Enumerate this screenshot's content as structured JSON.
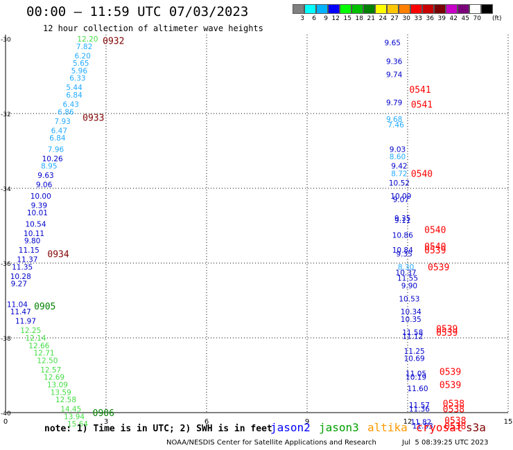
{
  "header": {
    "title": "00:00 – 11:59 UTC 07/03/2023",
    "subtitle": "12 hour collection of altimeter wave heights"
  },
  "legend": {
    "colors": [
      "#808080",
      "#00ffff",
      "#00b4ff",
      "#0000ff",
      "#00ff00",
      "#00c000",
      "#008000",
      "#ffff00",
      "#ffc800",
      "#ff8000",
      "#ff0000",
      "#c80000",
      "#780000",
      "#c800c8",
      "#780078",
      "#ffffff",
      "#000000"
    ],
    "ticks": [
      "3",
      "6",
      "9",
      "12",
      "15",
      "18",
      "21",
      "24",
      "27",
      "30",
      "33",
      "36",
      "39",
      "42",
      "45",
      "70"
    ],
    "unit": "(ft)"
  },
  "footer": {
    "note": "note: 1) Time is in UTC; 2) SWH is in feet",
    "satellites": [
      {
        "name": "jason2",
        "color": "#0000ff"
      },
      {
        "name": "jason3",
        "color": "#00a000"
      },
      {
        "name": "altika",
        "color": "#ff9900"
      },
      {
        "name": "cryosat",
        "color": "#ff0000"
      },
      {
        "name": "s3a",
        "color": "#800000"
      }
    ],
    "credit": "NOAA/NESDIS Center for Satellite Applications and Research",
    "timestamp": "Jul  5 08:39:25 UTC 2023"
  },
  "chart_data": {
    "type": "scatter",
    "title": "12 hour collection of altimeter wave heights",
    "xlim": [
      0,
      15
    ],
    "ylim": [
      -40,
      -30
    ],
    "x_ticks": [
      "0",
      "3",
      "6",
      "9",
      "12",
      "15"
    ],
    "y_ticks": [
      "-30",
      "-32",
      "-34",
      "-36",
      "-38",
      "-40"
    ],
    "grid": true,
    "wave_colors": {
      "low": "#22aaff",
      "mid": "#0000cc",
      "green": "#44dd44"
    },
    "track_colors": {
      "cryosat": "#ff0000",
      "s3a": "#800000",
      "jason3": "#008000"
    },
    "wave_heights": [
      {
        "x": 2.45,
        "y": -30.0,
        "v": "12.20",
        "c": "#44dd44"
      },
      {
        "x": 2.35,
        "y": -30.2,
        "v": "7.82",
        "c": "#22aaff"
      },
      {
        "x": 2.3,
        "y": -30.45,
        "v": "6.20",
        "c": "#22aaff"
      },
      {
        "x": 2.25,
        "y": -30.65,
        "v": "5.65",
        "c": "#22aaff"
      },
      {
        "x": 2.2,
        "y": -30.85,
        "v": "5.96",
        "c": "#22aaff"
      },
      {
        "x": 2.15,
        "y": -31.05,
        "v": "6.33",
        "c": "#22aaff"
      },
      {
        "x": 2.05,
        "y": -31.3,
        "v": "5.44",
        "c": "#22aaff"
      },
      {
        "x": 2.05,
        "y": -31.5,
        "v": "6.84",
        "c": "#22aaff"
      },
      {
        "x": 1.95,
        "y": -31.75,
        "v": "6.43",
        "c": "#22aaff"
      },
      {
        "x": 1.8,
        "y": -31.95,
        "v": "6.86",
        "c": "#22aaff"
      },
      {
        "x": 1.7,
        "y": -32.2,
        "v": "7.93",
        "c": "#22aaff"
      },
      {
        "x": 1.6,
        "y": -32.45,
        "v": "6.47",
        "c": "#22aaff"
      },
      {
        "x": 1.55,
        "y": -32.65,
        "v": "6.84",
        "c": "#22aaff"
      },
      {
        "x": 1.5,
        "y": -32.95,
        "v": "7.96",
        "c": "#22aaff"
      },
      {
        "x": 1.4,
        "y": -33.2,
        "v": "10.26",
        "c": "#0000cc"
      },
      {
        "x": 1.3,
        "y": -33.4,
        "v": "8.95",
        "c": "#22aaff"
      },
      {
        "x": 1.2,
        "y": -33.65,
        "v": "9.63",
        "c": "#0000cc"
      },
      {
        "x": 1.15,
        "y": -33.9,
        "v": "9.06",
        "c": "#0000cc"
      },
      {
        "x": 1.05,
        "y": -34.2,
        "v": "10.00",
        "c": "#0000cc"
      },
      {
        "x": 1.0,
        "y": -34.45,
        "v": "9.39",
        "c": "#0000cc"
      },
      {
        "x": 0.95,
        "y": -34.65,
        "v": "10.01",
        "c": "#0000cc"
      },
      {
        "x": 0.9,
        "y": -34.95,
        "v": "10.54",
        "c": "#0000cc"
      },
      {
        "x": 0.85,
        "y": -35.2,
        "v": "10.11",
        "c": "#0000cc"
      },
      {
        "x": 0.8,
        "y": -35.4,
        "v": "9.80",
        "c": "#0000cc"
      },
      {
        "x": 0.7,
        "y": -35.65,
        "v": "11.15",
        "c": "#0000cc"
      },
      {
        "x": 0.65,
        "y": -35.9,
        "v": "11.37",
        "c": "#0000cc"
      },
      {
        "x": 0.5,
        "y": -36.1,
        "v": "11.35",
        "c": "#0000cc"
      },
      {
        "x": 0.45,
        "y": -36.35,
        "v": "10.28",
        "c": "#0000cc"
      },
      {
        "x": 0.4,
        "y": -36.55,
        "v": "9.27",
        "c": "#0000cc"
      },
      {
        "x": 0.35,
        "y": -37.1,
        "v": "11.04",
        "c": "#0000cc"
      },
      {
        "x": 0.45,
        "y": -37.3,
        "v": "11.47",
        "c": "#0000cc"
      },
      {
        "x": 0.6,
        "y": -37.55,
        "v": "11.97",
        "c": "#0000cc"
      },
      {
        "x": 0.75,
        "y": -37.8,
        "v": "12.25",
        "c": "#44dd44"
      },
      {
        "x": 0.9,
        "y": -38.0,
        "v": "12.14",
        "c": "#44dd44"
      },
      {
        "x": 1.0,
        "y": -38.2,
        "v": "12.66",
        "c": "#44dd44"
      },
      {
        "x": 1.15,
        "y": -38.4,
        "v": "12.71",
        "c": "#44dd44"
      },
      {
        "x": 1.25,
        "y": -38.6,
        "v": "12.50",
        "c": "#44dd44"
      },
      {
        "x": 1.35,
        "y": -38.85,
        "v": "12.57",
        "c": "#44dd44"
      },
      {
        "x": 1.45,
        "y": -39.05,
        "v": "12.69",
        "c": "#44dd44"
      },
      {
        "x": 1.55,
        "y": -39.25,
        "v": "13.09",
        "c": "#44dd44"
      },
      {
        "x": 1.65,
        "y": -39.45,
        "v": "13.59",
        "c": "#44dd44"
      },
      {
        "x": 1.8,
        "y": -39.65,
        "v": "12.58",
        "c": "#44dd44"
      },
      {
        "x": 1.95,
        "y": -39.9,
        "v": "14.45",
        "c": "#44dd44"
      },
      {
        "x": 2.05,
        "y": -40.1,
        "v": "13.94",
        "c": "#44dd44"
      },
      {
        "x": 2.15,
        "y": -40.3,
        "v": "15.64",
        "c": "#44dd44"
      },
      {
        "x": 11.55,
        "y": -30.1,
        "v": "9.65",
        "c": "#0000cc"
      },
      {
        "x": 11.6,
        "y": -30.6,
        "v": "9.36",
        "c": "#0000cc"
      },
      {
        "x": 11.6,
        "y": -30.95,
        "v": "9.74",
        "c": "#0000cc"
      },
      {
        "x": 11.6,
        "y": -31.7,
        "v": "9.79",
        "c": "#0000cc"
      },
      {
        "x": 11.6,
        "y": -32.15,
        "v": "9.68",
        "c": "#22aaff"
      },
      {
        "x": 11.65,
        "y": -32.3,
        "v": "7.46",
        "c": "#22aaff"
      },
      {
        "x": 11.7,
        "y": -32.95,
        "v": "9.03",
        "c": "#0000cc"
      },
      {
        "x": 11.7,
        "y": -33.15,
        "v": "8.60",
        "c": "#22aaff"
      },
      {
        "x": 11.75,
        "y": -33.4,
        "v": "9.42",
        "c": "#0000cc"
      },
      {
        "x": 11.75,
        "y": -33.6,
        "v": "8.72",
        "c": "#22aaff"
      },
      {
        "x": 11.75,
        "y": -33.85,
        "v": "10.52",
        "c": "#0000cc"
      },
      {
        "x": 11.8,
        "y": -34.2,
        "v": "10.09",
        "c": "#0000cc"
      },
      {
        "x": 11.8,
        "y": -34.3,
        "v": "9.07",
        "c": "#0000cc"
      },
      {
        "x": 11.85,
        "y": -34.8,
        "v": "9.35",
        "c": "#0000cc"
      },
      {
        "x": 11.85,
        "y": -34.85,
        "v": "9.11",
        "c": "#0000cc"
      },
      {
        "x": 11.85,
        "y": -35.25,
        "v": "10.86",
        "c": "#0000cc"
      },
      {
        "x": 11.85,
        "y": -35.65,
        "v": "10.84",
        "c": "#0000cc"
      },
      {
        "x": 11.9,
        "y": -35.75,
        "v": "9.35",
        "c": "#0000cc"
      },
      {
        "x": 11.95,
        "y": -36.1,
        "v": "8.30",
        "c": "#22aaff"
      },
      {
        "x": 11.95,
        "y": -36.25,
        "v": "10.37",
        "c": "#0000cc"
      },
      {
        "x": 12.0,
        "y": -36.4,
        "v": "11.55",
        "c": "#0000cc"
      },
      {
        "x": 12.05,
        "y": -36.6,
        "v": "9.90",
        "c": "#0000cc"
      },
      {
        "x": 12.05,
        "y": -36.95,
        "v": "10.53",
        "c": "#0000cc"
      },
      {
        "x": 12.1,
        "y": -37.3,
        "v": "10.34",
        "c": "#0000cc"
      },
      {
        "x": 12.1,
        "y": -37.5,
        "v": "10.35",
        "c": "#0000cc"
      },
      {
        "x": 12.15,
        "y": -37.85,
        "v": "11.58",
        "c": "#0000cc"
      },
      {
        "x": 12.15,
        "y": -37.95,
        "v": "11.12",
        "c": "#0000cc"
      },
      {
        "x": 12.2,
        "y": -38.35,
        "v": "11.25",
        "c": "#0000cc"
      },
      {
        "x": 12.2,
        "y": -38.55,
        "v": "10.69",
        "c": "#0000cc"
      },
      {
        "x": 12.25,
        "y": -38.95,
        "v": "11.05",
        "c": "#0000cc"
      },
      {
        "x": 12.25,
        "y": -39.05,
        "v": "10.19",
        "c": "#0000cc"
      },
      {
        "x": 12.3,
        "y": -39.35,
        "v": "11.60",
        "c": "#0000cc"
      },
      {
        "x": 12.35,
        "y": -39.8,
        "v": "11.57",
        "c": "#0000cc"
      },
      {
        "x": 12.35,
        "y": -39.9,
        "v": "11.36",
        "c": "#0000cc"
      },
      {
        "x": 12.4,
        "y": -40.25,
        "v": "11.82",
        "c": "#0000cc"
      },
      {
        "x": 12.45,
        "y": -40.35,
        "v": "11.53",
        "c": "#0000cc"
      }
    ],
    "track_times": [
      {
        "x": 2.9,
        "y": -30.05,
        "v": "0932",
        "c": "#800000"
      },
      {
        "x": 2.3,
        "y": -32.1,
        "v": "0933",
        "c": "#800000"
      },
      {
        "x": 1.25,
        "y": -35.75,
        "v": "0934",
        "c": "#800000"
      },
      {
        "x": 0.85,
        "y": -37.15,
        "v": "0905",
        "c": "#008000"
      },
      {
        "x": 2.6,
        "y": -40.0,
        "v": "0906",
        "c": "#008000"
      },
      {
        "x": 12.05,
        "y": -31.35,
        "v": "0541",
        "c": "#ff0000"
      },
      {
        "x": 12.1,
        "y": -31.75,
        "v": "0541",
        "c": "#ff0000"
      },
      {
        "x": 12.1,
        "y": -33.6,
        "v": "0540",
        "c": "#ff0000"
      },
      {
        "x": 12.5,
        "y": -35.1,
        "v": "0540",
        "c": "#ff0000"
      },
      {
        "x": 12.5,
        "y": -35.55,
        "v": "0540",
        "c": "#ff0000"
      },
      {
        "x": 12.5,
        "y": -35.65,
        "v": "0539",
        "c": "#ff0000"
      },
      {
        "x": 12.6,
        "y": -36.1,
        "v": "0539",
        "c": "#ff0000"
      },
      {
        "x": 12.85,
        "y": -37.75,
        "v": "0539",
        "c": "#ff0000"
      },
      {
        "x": 12.85,
        "y": -37.85,
        "v": "0539",
        "c": "#ff0000"
      },
      {
        "x": 12.95,
        "y": -38.9,
        "v": "0539",
        "c": "#ff0000"
      },
      {
        "x": 12.95,
        "y": -39.25,
        "v": "0539",
        "c": "#ff0000"
      },
      {
        "x": 13.05,
        "y": -39.75,
        "v": "0538",
        "c": "#ff0000"
      },
      {
        "x": 13.05,
        "y": -39.9,
        "v": "0538",
        "c": "#ff0000"
      },
      {
        "x": 13.1,
        "y": -40.2,
        "v": "0538",
        "c": "#ff0000"
      },
      {
        "x": 13.1,
        "y": -40.35,
        "v": "0538",
        "c": "#ff0000"
      }
    ]
  }
}
